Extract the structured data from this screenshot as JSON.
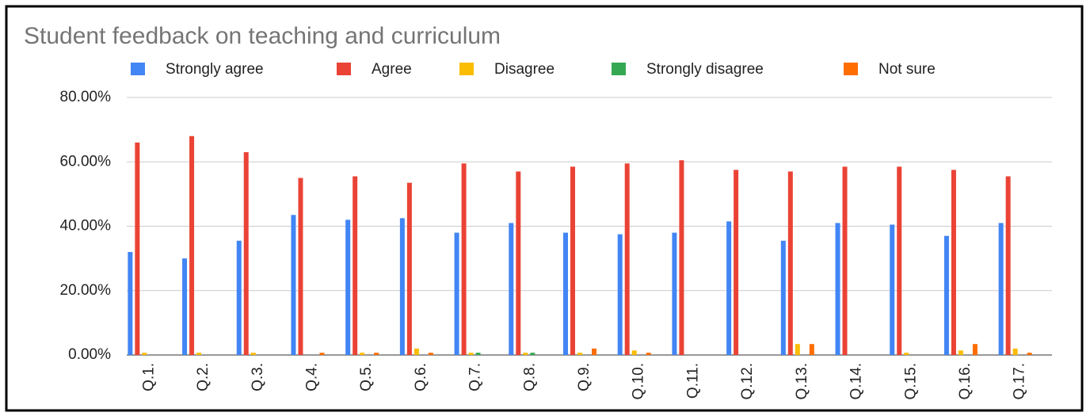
{
  "chart_data": {
    "type": "bar",
    "title": "Student feedback on teaching and curriculum",
    "categories": [
      "Q.1.",
      "Q.2.",
      "Q.3.",
      "Q.4.",
      "Q.5.",
      "Q.6.",
      "Q.7.",
      "Q.8.",
      "Q.9.",
      "Q.10.",
      "Q.11.",
      "Q.12.",
      "Q.13.",
      "Q.14.",
      "Q.15.",
      "Q.16.",
      "Q.17."
    ],
    "series": [
      {
        "name": "Strongly agree",
        "color": "#4285f4",
        "values": [
          32,
          30,
          35.5,
          43.5,
          42,
          42.5,
          38,
          41,
          38,
          37.5,
          38,
          41.5,
          35.5,
          41,
          40.5,
          37,
          41
        ]
      },
      {
        "name": "Agree",
        "color": "#ea4335",
        "values": [
          66,
          68,
          63,
          55,
          55.5,
          53.5,
          59.5,
          57,
          58.5,
          59.5,
          60.5,
          57.5,
          57,
          58.5,
          58.5,
          57.5,
          55.5
        ]
      },
      {
        "name": "Disagree",
        "color": "#fbbc04",
        "values": [
          0.7,
          0.7,
          0.7,
          0,
          0.7,
          2,
          0.7,
          0.7,
          0.7,
          1.4,
          0,
          0,
          3.4,
          0,
          0.7,
          1.4,
          2
        ]
      },
      {
        "name": "Strongly disagree",
        "color": "#34a853",
        "values": [
          0,
          0,
          0,
          0,
          0,
          0,
          0.7,
          0.7,
          0,
          0,
          0,
          0,
          0,
          0,
          0,
          0,
          0
        ]
      },
      {
        "name": "Not sure",
        "color": "#ff6d01",
        "values": [
          0,
          0,
          0,
          0.7,
          0.7,
          0.7,
          0,
          0,
          2,
          0.7,
          0,
          0,
          3.4,
          0,
          0,
          3.4,
          0.7
        ]
      }
    ],
    "ylim": [
      0,
      80
    ],
    "yticks": [
      {
        "value": 0,
        "label": "0.00%"
      },
      {
        "value": 20,
        "label": "20.00%"
      },
      {
        "value": 40,
        "label": "40.00%"
      },
      {
        "value": 60,
        "label": "60.00%"
      },
      {
        "value": 80,
        "label": "80.00%"
      }
    ],
    "grid": true,
    "legend": "top"
  }
}
